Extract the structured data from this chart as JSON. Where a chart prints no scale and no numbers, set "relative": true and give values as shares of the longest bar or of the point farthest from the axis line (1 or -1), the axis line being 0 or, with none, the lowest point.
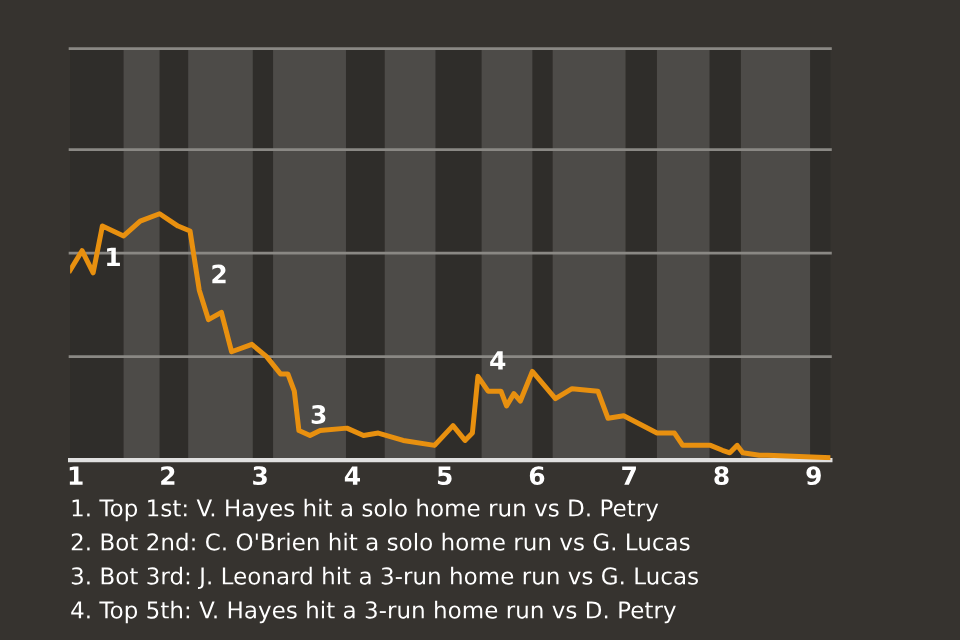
{
  "chart_data": {
    "type": "line",
    "relative": true,
    "color": "#e8900f",
    "ref_lines": [
      {
        "axis": "y",
        "value": 0.42,
        "color": "#8a8884"
      },
      {
        "axis": "y",
        "value": 0.84,
        "color": "#8a8884"
      },
      {
        "axis": "y",
        "value": 1.26,
        "color": "#8a8884"
      },
      {
        "axis": "y",
        "value": 1.67,
        "color": "#8a8884"
      }
    ],
    "marker": "none",
    "line_style": "solid",
    "x": [
      0.94,
      1.07,
      1.19,
      1.29,
      1.52,
      1.7,
      1.91,
      2.11,
      2.24,
      2.34,
      2.44,
      2.58,
      2.69,
      2.91,
      3.07,
      3.22,
      3.3,
      3.37,
      3.42,
      3.54,
      3.65,
      3.94,
      4.12,
      4.28,
      4.55,
      4.89,
      5.09,
      5.22,
      5.3,
      5.36,
      5.47,
      5.61,
      5.67,
      5.75,
      5.82,
      5.95,
      6.2,
      6.38,
      6.66,
      6.77,
      6.94,
      7.3,
      7.49,
      7.58,
      7.88,
      8.01,
      8.09,
      8.17,
      8.23,
      8.41,
      8.5,
      9.18
    ],
    "values": [
      0.77,
      0.85,
      0.76,
      0.95,
      0.91,
      0.97,
      1.0,
      0.95,
      0.93,
      0.69,
      0.57,
      0.6,
      0.44,
      0.47,
      0.42,
      0.35,
      0.35,
      0.28,
      0.12,
      0.1,
      0.12,
      0.13,
      0.1,
      0.11,
      0.08,
      0.06,
      0.14,
      0.08,
      0.11,
      0.34,
      0.28,
      0.28,
      0.22,
      0.27,
      0.24,
      0.36,
      0.25,
      0.29,
      0.28,
      0.17,
      0.18,
      0.11,
      0.11,
      0.06,
      0.06,
      0.04,
      0.03,
      0.06,
      0.03,
      0.02,
      0.02,
      0.01
    ],
    "xlim": [
      0.94,
      9.18
    ],
    "xticks": [
      1,
      2,
      3,
      4,
      5,
      6,
      7,
      8,
      9
    ],
    "bands": [
      {
        "axis": "x",
        "from": 1.52,
        "to": 1.91,
        "color": "#4d4b48"
      },
      {
        "axis": "x",
        "from": 2.22,
        "to": 2.92,
        "color": "#4d4b48"
      },
      {
        "axis": "x",
        "from": 3.14,
        "to": 3.93,
        "color": "#4d4b48"
      },
      {
        "axis": "x",
        "from": 4.35,
        "to": 4.9,
        "color": "#4d4b48"
      },
      {
        "axis": "x",
        "from": 5.4,
        "to": 5.95,
        "color": "#4d4b48"
      },
      {
        "axis": "x",
        "from": 6.17,
        "to": 6.96,
        "color": "#4d4b48"
      },
      {
        "axis": "x",
        "from": 7.3,
        "to": 7.87,
        "color": "#4d4b48"
      },
      {
        "axis": "x",
        "from": 8.21,
        "to": 8.96,
        "color": "#4d4b48"
      }
    ],
    "annotations": [
      {
        "text": "1",
        "x": 1.19,
        "y": 0.76
      },
      {
        "text": "2",
        "x": 2.34,
        "y": 0.69
      },
      {
        "text": "3",
        "x": 3.42,
        "y": 0.12
      },
      {
        "text": "4",
        "x": 5.36,
        "y": 0.34
      },
      "1. Top 1st: V. Hayes hit a solo home run vs D. Petry",
      "2. Bot 2nd: C. O'Brien hit a solo home run vs G. Lucas",
      "3. Bot 3rd: J. Leonard hit a 3-run home run vs G. Lucas",
      "4. Top 5th: V. Hayes hit a 3-run home run vs D. Petry"
    ]
  }
}
